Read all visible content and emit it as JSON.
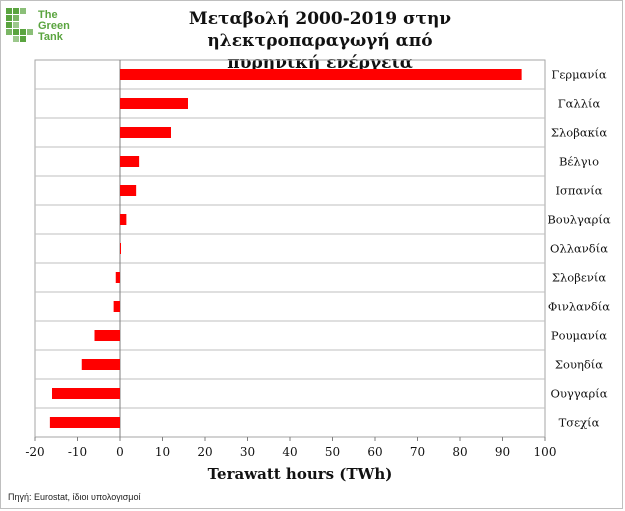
{
  "title_line1": "Μεταβολή 2000-2019 στην ηλεκτροπαραγωγή από",
  "title_line2": "πυρηνική ενέργεια",
  "logo": {
    "line1": "The",
    "line2": "Green",
    "line3": "Tank",
    "color": "#5aa43f"
  },
  "source": "Πηγή: Eurostat, ίδιοι υπολογισμοί",
  "chart_data": {
    "type": "bar",
    "orientation": "horizontal",
    "xlabel": "Terawatt hours (TWh)",
    "xlim": [
      -20,
      100
    ],
    "xticks": [
      -20,
      -10,
      0,
      10,
      20,
      30,
      40,
      50,
      60,
      70,
      80,
      90,
      100
    ],
    "grid": true,
    "bar_color": "#ff0000",
    "categories": [
      "Γερμανία",
      "Γαλλία",
      "Σλοβακία",
      "Βέλγιο",
      "Ισπανία",
      "Βουλγαρία",
      "Ολλανδία",
      "Σλοβενία",
      "Φινλανδία",
      "Ρουμανία",
      "Σουηδία",
      "Ουγγαρία",
      "Τσεχία"
    ],
    "values": [
      94.5,
      16,
      12,
      4.5,
      3.8,
      1.5,
      0.2,
      -1,
      -1.5,
      -6,
      -9,
      -16,
      -16.5
    ]
  }
}
